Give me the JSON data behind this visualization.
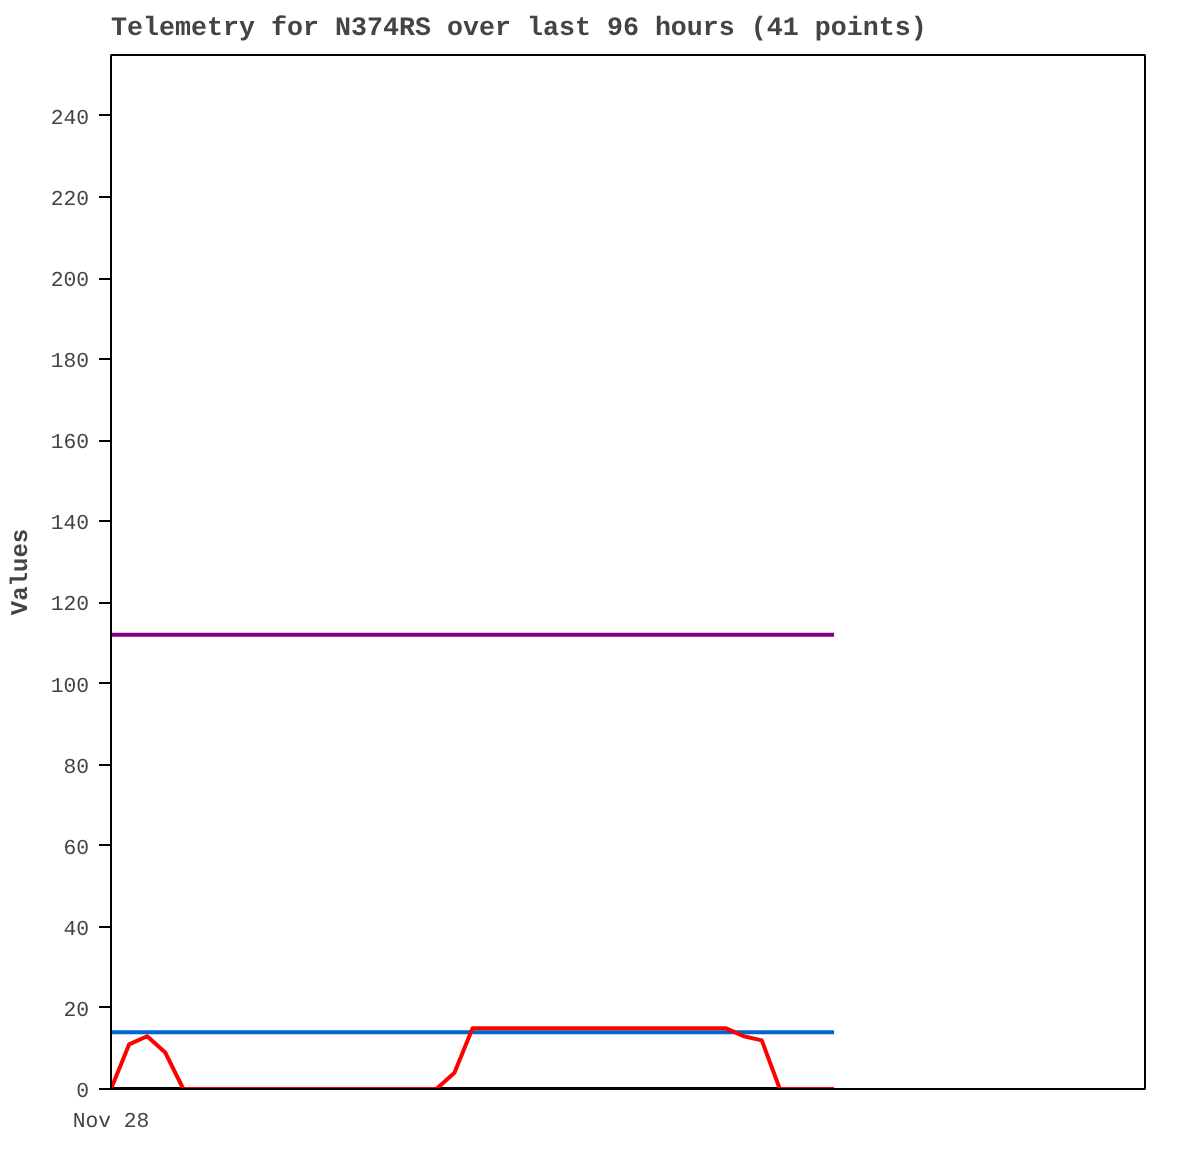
{
  "chart_data": {
    "type": "line",
    "title": "Telemetry for N374RS over last 96 hours (41 points)",
    "ylabel": "Values",
    "categories": [
      "Nov 28",
      null,
      null,
      null,
      null,
      null,
      null,
      null,
      null,
      null,
      null,
      null,
      null,
      null,
      null,
      null,
      null,
      null,
      null,
      null,
      null,
      null,
      null,
      null,
      null,
      null,
      null,
      null,
      null,
      null,
      null,
      null,
      null,
      null,
      null,
      null,
      null,
      null,
      null,
      null,
      null
    ],
    "ylim": [
      0,
      255
    ],
    "yticks": [
      0,
      20,
      40,
      60,
      80,
      100,
      120,
      140,
      160,
      180,
      200,
      220,
      240
    ],
    "grid": false,
    "marker": "none",
    "line_style": "solid",
    "series": [
      {
        "color": "#800080",
        "values": [
          112,
          112,
          112,
          112,
          112,
          112,
          112,
          112,
          112,
          112,
          112,
          112,
          112,
          112,
          112,
          112,
          112,
          112,
          112,
          112,
          112,
          112,
          112,
          112,
          112,
          112,
          112,
          112,
          112,
          112,
          112,
          112,
          112,
          112,
          112,
          112,
          112,
          112,
          112,
          112,
          112
        ]
      },
      {
        "color": "#0066cc",
        "values": [
          14,
          14,
          14,
          14,
          14,
          14,
          14,
          14,
          14,
          14,
          14,
          14,
          14,
          14,
          14,
          14,
          14,
          14,
          14,
          14,
          14,
          14,
          14,
          14,
          14,
          14,
          14,
          14,
          14,
          14,
          14,
          14,
          14,
          14,
          14,
          14,
          14,
          14,
          14,
          14,
          14
        ]
      },
      {
        "color": "#000000",
        "values": [
          0,
          0,
          0,
          0,
          0,
          0,
          0,
          0,
          0,
          0,
          0,
          0,
          0,
          0,
          0,
          0,
          0,
          0,
          0,
          0,
          0,
          0,
          0,
          0,
          0,
          0,
          0,
          0,
          0,
          0,
          0,
          0,
          0,
          0,
          0,
          0,
          0,
          0,
          0,
          0,
          0
        ]
      },
      {
        "color": "#ff0000",
        "values": [
          0,
          11,
          13,
          9,
          0,
          0,
          0,
          0,
          0,
          0,
          0,
          0,
          0,
          0,
          0,
          0,
          0,
          0,
          0,
          4,
          15,
          15,
          15,
          15,
          15,
          15,
          15,
          15,
          15,
          15,
          15,
          15,
          15,
          15,
          15,
          13,
          12,
          0,
          0,
          0,
          0
        ]
      }
    ]
  }
}
